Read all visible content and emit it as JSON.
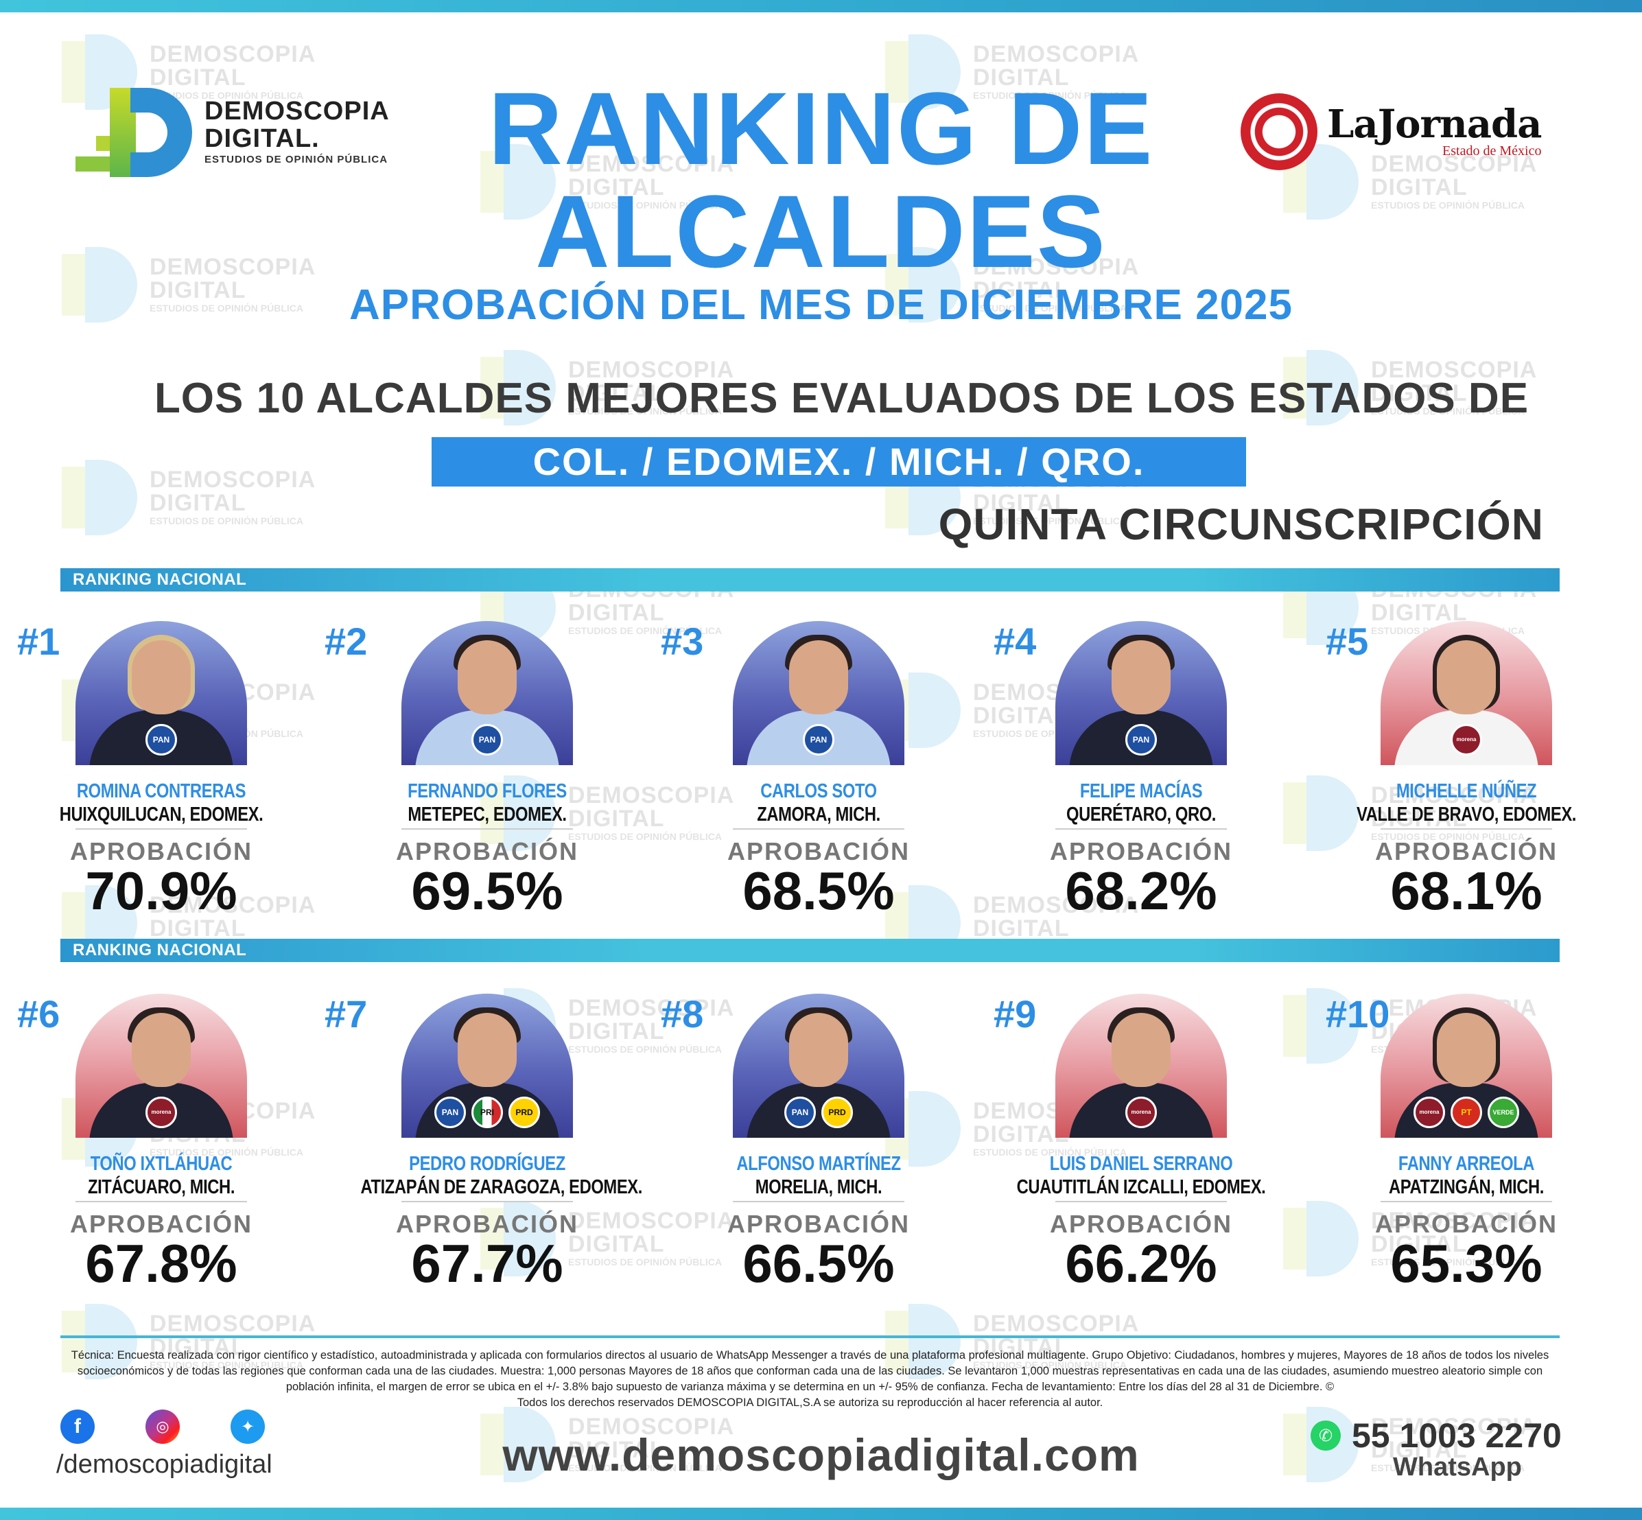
{
  "header": {
    "brand": {
      "line1": "DEMOSCOPIA",
      "line2": "DIGITAL.",
      "line3": "ESTUDIOS DE OPINIÓN PÚBLICA"
    },
    "partner": {
      "name": "LaJornada",
      "sub": "Estado de México"
    },
    "title_line1": "RANKING DE",
    "title_line2": "ALCALDES",
    "subtitle": "APROBACIÓN DEL MES DE DICIEMBRE 2025",
    "headline": "LOS 10 ALCALDES MEJORES EVALUADOS DE LOS ESTADOS DE",
    "states": "COL. /  EDOMEX.  /  MICH.  /  QRO.",
    "circunscripcion": "QUINTA CIRCUNSCRIPCIÓN"
  },
  "watermark": {
    "line1": "DEMOSCOPIA",
    "line2": "DIGITAL",
    "line3": "ESTUDIOS DE OPINIÓN PÚBLICA"
  },
  "sections": {
    "row1": "RANKING NACIONAL",
    "row2": "RANKING NACIONAL"
  },
  "approval_label": "APROBACIÓN",
  "colors": {
    "accent": "#2d8ee5",
    "band": "#41c4dc",
    "text_dark": "#111111"
  },
  "candidates": [
    {
      "rank": "#1",
      "name": "ROMINA CONTRERAS",
      "municipality": "HUIXQUILUCAN, EDOMEX.",
      "approval": "70.9%",
      "approval_value": 70.9,
      "parties": [
        "PAN"
      ],
      "bg": "blue"
    },
    {
      "rank": "#2",
      "name": "FERNANDO FLORES",
      "municipality": "METEPEC, EDOMEX.",
      "approval": "69.5%",
      "approval_value": 69.5,
      "parties": [
        "PAN"
      ],
      "bg": "blue"
    },
    {
      "rank": "#3",
      "name": "CARLOS SOTO",
      "municipality": "ZAMORA, MICH.",
      "approval": "68.5%",
      "approval_value": 68.5,
      "parties": [
        "PAN"
      ],
      "bg": "blue"
    },
    {
      "rank": "#4",
      "name": "FELIPE MACÍAS",
      "municipality": "QUERÉTARO, QRO.",
      "approval": "68.2%",
      "approval_value": 68.2,
      "parties": [
        "PAN"
      ],
      "bg": "blue"
    },
    {
      "rank": "#5",
      "name": "MICHELLE NÚÑEZ",
      "municipality": "VALLE DE BRAVO, EDOMEX.",
      "approval": "68.1%",
      "approval_value": 68.1,
      "parties": [
        "morena"
      ],
      "bg": "red"
    },
    {
      "rank": "#6",
      "name": "TOÑO IXTLÁHUAC",
      "municipality": "ZITÁCUARO, MICH.",
      "approval": "67.8%",
      "approval_value": 67.8,
      "parties": [
        "morena"
      ],
      "bg": "red"
    },
    {
      "rank": "#7",
      "name": "PEDRO RODRÍGUEZ",
      "municipality": "ATIZAPÁN DE ZARAGOZA, EDOMEX.",
      "approval": "67.7%",
      "approval_value": 67.7,
      "parties": [
        "PAN",
        "PRI",
        "PRD"
      ],
      "bg": "blue"
    },
    {
      "rank": "#8",
      "name": "ALFONSO MARTÍNEZ",
      "municipality": "MORELIA, MICH.",
      "approval": "66.5%",
      "approval_value": 66.5,
      "parties": [
        "PAN",
        "PRD"
      ],
      "bg": "blue"
    },
    {
      "rank": "#9",
      "name": "LUIS DANIEL SERRANO",
      "municipality": "CUAUTITLÁN IZCALLI, EDOMEX.",
      "approval": "66.2%",
      "approval_value": 66.2,
      "parties": [
        "morena"
      ],
      "bg": "red"
    },
    {
      "rank": "#10",
      "name": "FANNY ARREOLA",
      "municipality": "APATZINGÁN, MICH.",
      "approval": "65.3%",
      "approval_value": 65.3,
      "parties": [
        "morena",
        "PT",
        "VERDE"
      ],
      "bg": "red"
    }
  ],
  "footer": {
    "methodology": "Técnica: Encuesta realizada con rigor científico y estadístico, autoadministrada y aplicada con formularios directos al usuario de WhatsApp Messenger a través de una plataforma profesional multiagente. Grupo Objetivo: Ciudadanos, hombres y mujeres, Mayores de 18 años de todos los niveles socioeconómicos y de todas las regiones que conforman cada una de las ciudades. Muestra: 1,000 personas Mayores de 18 años que conforman cada una de las ciudades. Se levantaron 1,000 muestras representativas en cada una de las ciudades, asumiendo muestreo aleatorio simple con población infinita, el margen de error se ubica en el +/- 3.8% bajo supuesto de varianza máxima y se determina en un +/- 95% de confianza. Fecha de levantamiento: Entre los días del 28 al 31 de Diciembre. ©",
    "rights": "Todos los derechos reservados DEMOSCOPIA DIGITAL,S.A se autoriza su reproducción al hacer referencia al autor.",
    "social_icons": [
      "facebook-icon",
      "instagram-icon",
      "twitter-icon"
    ],
    "handle": "/demoscopiadigital",
    "website": "www.demoscopiadigital.com",
    "phone": "55 1003 2270",
    "whatsapp_label": "WhatsApp"
  }
}
